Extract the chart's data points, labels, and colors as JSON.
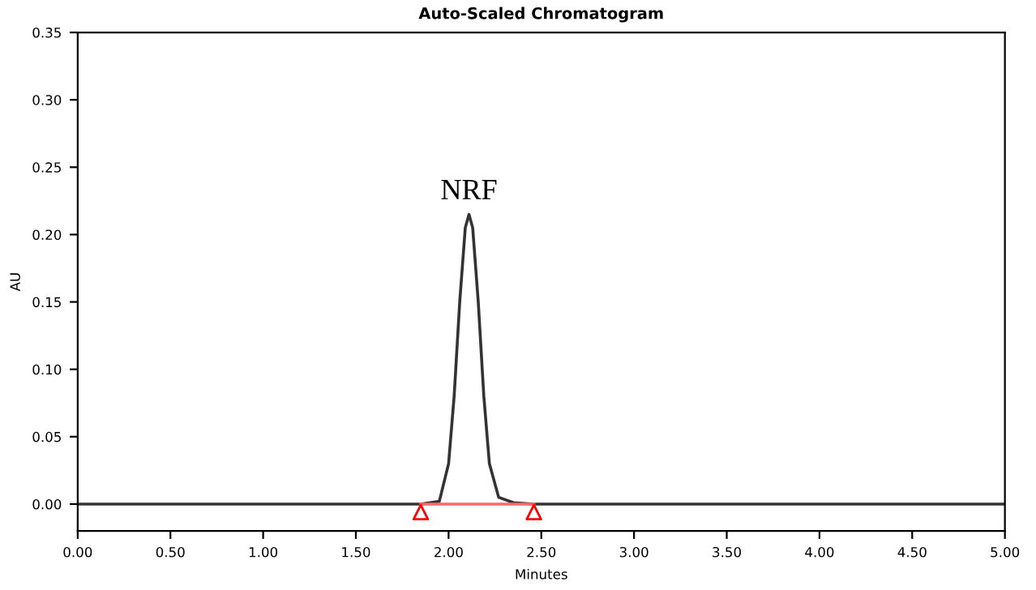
{
  "chart_data": {
    "type": "line",
    "title": "Auto-Scaled Chromatogram",
    "xlabel": "Minutes",
    "ylabel": "AU",
    "xlim": [
      0,
      5
    ],
    "ylim": [
      -0.02,
      0.35
    ],
    "xticks": [
      {
        "value": 0,
        "label": "0.00"
      },
      {
        "value": 0.5,
        "label": "0.50"
      },
      {
        "value": 1,
        "label": "1.00"
      },
      {
        "value": 1.5,
        "label": "1.50"
      },
      {
        "value": 2,
        "label": "2.00"
      },
      {
        "value": 2.5,
        "label": "2.50"
      },
      {
        "value": 3,
        "label": "3.00"
      },
      {
        "value": 3.5,
        "label": "3.50"
      },
      {
        "value": 4,
        "label": "4.00"
      },
      {
        "value": 4.5,
        "label": "4.50"
      },
      {
        "value": 5,
        "label": "5.00"
      }
    ],
    "yticks": [
      {
        "value": 0,
        "label": "0.00"
      },
      {
        "value": 0.05,
        "label": "0.05"
      },
      {
        "value": 0.1,
        "label": "0.10"
      },
      {
        "value": 0.15,
        "label": "0.15"
      },
      {
        "value": 0.2,
        "label": "0.20"
      },
      {
        "value": 0.25,
        "label": "0.25"
      },
      {
        "value": 0.3,
        "label": "0.30"
      },
      {
        "value": 0.35,
        "label": "0.35"
      }
    ],
    "grid": false,
    "legend": false,
    "series": [
      {
        "type": "line",
        "color": "#333333",
        "x": [
          0,
          1.85,
          1.95,
          2.0,
          2.03,
          2.06,
          2.09,
          2.11,
          2.13,
          2.16,
          2.19,
          2.22,
          2.27,
          2.35,
          2.46,
          5
        ],
        "values": [
          0,
          0,
          0.002,
          0.03,
          0.08,
          0.15,
          0.205,
          0.215,
          0.205,
          0.15,
          0.08,
          0.03,
          0.005,
          0.001,
          0,
          0
        ]
      },
      {
        "type": "line",
        "color": "#ff6666",
        "x": [
          1.85,
          2.46
        ],
        "values": [
          0,
          0
        ]
      },
      {
        "type": "scatter",
        "color": "#ff0000",
        "marker": "triangle",
        "x": [
          1.85,
          2.46
        ],
        "values": [
          -0.006,
          -0.006
        ]
      }
    ],
    "annotations": [
      {
        "text": "NRF",
        "x": 2.11,
        "y": 0.215
      }
    ]
  }
}
